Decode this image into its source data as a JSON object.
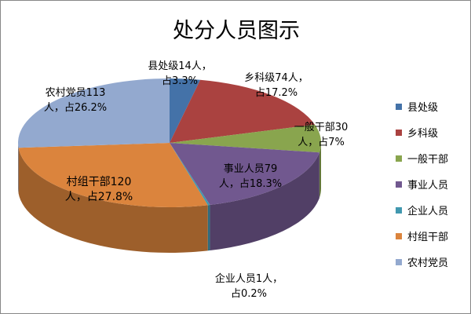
{
  "chart_data": {
    "type": "pie",
    "title": "处分人员图示",
    "style": "3d",
    "legend_position": "right",
    "slices": [
      {
        "name": "县处级",
        "value": 14,
        "percent": 3.3,
        "label": "县处级14人，\n占3.3%",
        "color": "#4472a8"
      },
      {
        "name": "乡科级",
        "value": 74,
        "percent": 17.2,
        "label": "乡科级74人，\n占17.2%",
        "color": "#aa4240"
      },
      {
        "name": "一般干部",
        "value": 30,
        "percent": 7,
        "label": "一般干部30\n人，占7%",
        "color": "#89a54e"
      },
      {
        "name": "事业人员",
        "value": 79,
        "percent": 18.3,
        "label": "事业人员79\n人，占18.3%",
        "color": "#71588f"
      },
      {
        "name": "企业人员",
        "value": 1,
        "percent": 0.2,
        "label": "企业人员1人，\n占0.2%",
        "color": "#4198af"
      },
      {
        "name": "村组干部",
        "value": 120,
        "percent": 27.8,
        "label": "村组干部120\n人，占27.8%",
        "color": "#db843d"
      },
      {
        "name": "农村党员",
        "value": 113,
        "percent": 26.2,
        "label": "农村党员113\n人，占26.2%",
        "color": "#93a9cf"
      }
    ]
  }
}
